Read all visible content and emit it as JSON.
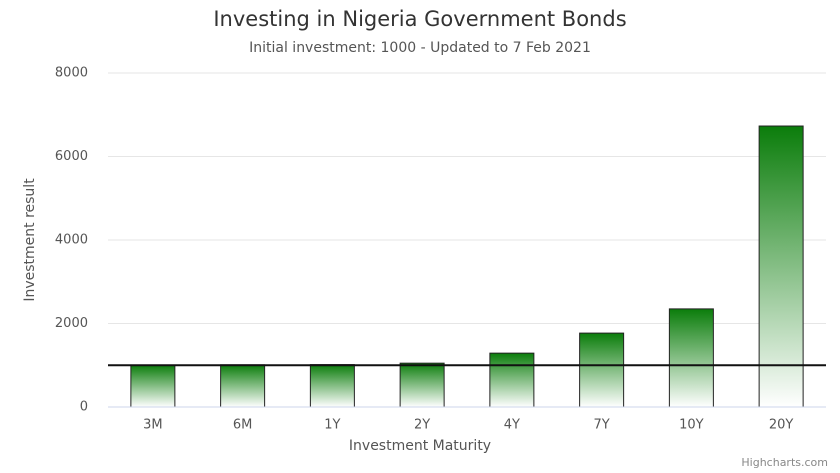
{
  "chart_data": {
    "type": "bar",
    "title": "Investing in Nigeria Government Bonds",
    "subtitle": "Initial investment: 1000 - Updated to 7 Feb 2021",
    "x_label": "Investment Maturity",
    "y_label": "Investment result",
    "categories": [
      "3M",
      "6M",
      "1Y",
      "2Y",
      "4Y",
      "7Y",
      "10Y",
      "20Y"
    ],
    "values": [
      1005,
      1010,
      1015,
      1050,
      1290,
      1770,
      2350,
      6730
    ],
    "color": "#0b7d0b",
    "reference_line": 1000,
    "ylim": [
      0,
      8000
    ],
    "yticks": [
      0,
      2000,
      4000,
      6000,
      8000
    ],
    "grid": true,
    "credits": "Highcharts.com"
  }
}
